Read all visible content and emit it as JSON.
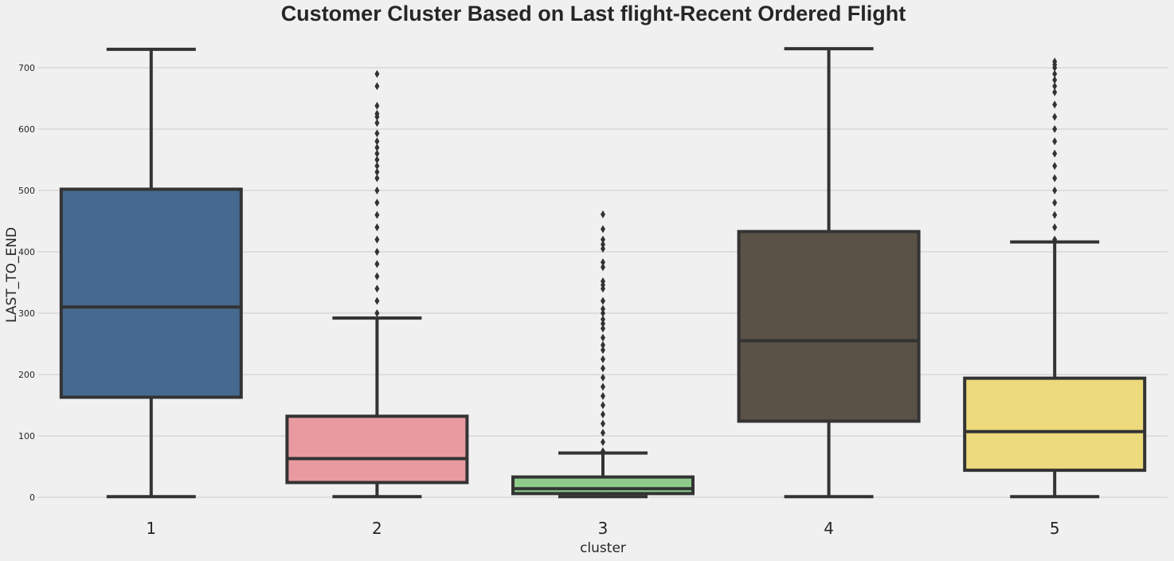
{
  "chart_data": {
    "type": "box",
    "title": "Customer Cluster Based on Last flight-Recent Ordered Flight",
    "xlabel": "cluster",
    "ylabel": "LAST_TO_END",
    "ylim": [
      -30,
      750
    ],
    "yticks": [
      0,
      100,
      200,
      300,
      400,
      500,
      600,
      700
    ],
    "grid": "horizontal",
    "categories": [
      "1",
      "2",
      "3",
      "4",
      "5"
    ],
    "boxes": [
      {
        "category": "1",
        "color": "#466a8f",
        "min": 1,
        "q1": 163,
        "median": 310,
        "q3": 502,
        "max": 730,
        "outliers": []
      },
      {
        "category": "2",
        "color": "#e99aa0",
        "min": 1,
        "q1": 24,
        "median": 63,
        "q3": 132,
        "max": 292,
        "outliers": [
          300,
          320,
          340,
          360,
          380,
          400,
          420,
          440,
          460,
          480,
          500,
          520,
          530,
          540,
          550,
          560,
          570,
          580,
          593,
          610,
          620,
          625,
          638,
          670,
          690
        ]
      },
      {
        "category": "3",
        "color": "#8fcc8c",
        "min": 1,
        "q1": 6,
        "median": 14,
        "q3": 33,
        "max": 72,
        "outliers": [
          75,
          90,
          105,
          120,
          135,
          150,
          165,
          180,
          195,
          210,
          225,
          240,
          248,
          260,
          275,
          283,
          290,
          300,
          307,
          320,
          340,
          346,
          352,
          375,
          383,
          405,
          412,
          420,
          437,
          461
        ]
      },
      {
        "category": "4",
        "color": "#5a5147",
        "min": 1,
        "q1": 124,
        "median": 255,
        "q3": 433,
        "max": 731,
        "outliers": []
      },
      {
        "category": "5",
        "color": "#ecda7c",
        "min": 1,
        "q1": 44,
        "median": 107,
        "q3": 194,
        "max": 416,
        "outliers": [
          420,
          440,
          460,
          480,
          500,
          520,
          540,
          560,
          580,
          600,
          620,
          640,
          660,
          670,
          680,
          690,
          700,
          705,
          710
        ]
      }
    ]
  }
}
